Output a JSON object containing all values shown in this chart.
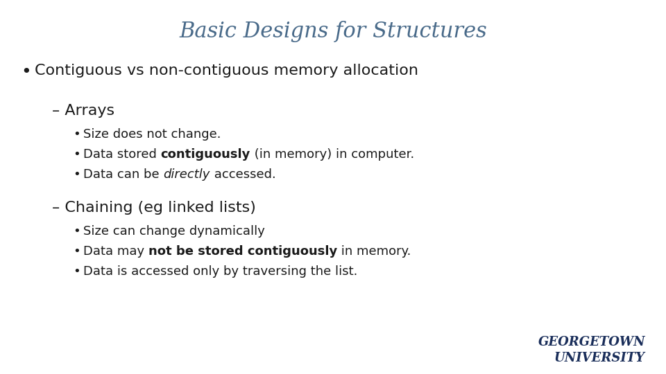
{
  "title": "Basic Designs for Structures",
  "title_color": "#4a6b8a",
  "title_fontsize": 22,
  "title_style": "italic",
  "title_font": "serif",
  "background_color": "#ffffff",
  "text_color": "#1a1a1a",
  "bullet_main_fontsize": 16,
  "sub_header_fontsize": 16,
  "bullet_sub_fontsize": 13,
  "georgetown_color": "#1a2e5a",
  "logo_text_line1": "GEORGETOWN",
  "logo_text_line2": "UNIVERSITY"
}
